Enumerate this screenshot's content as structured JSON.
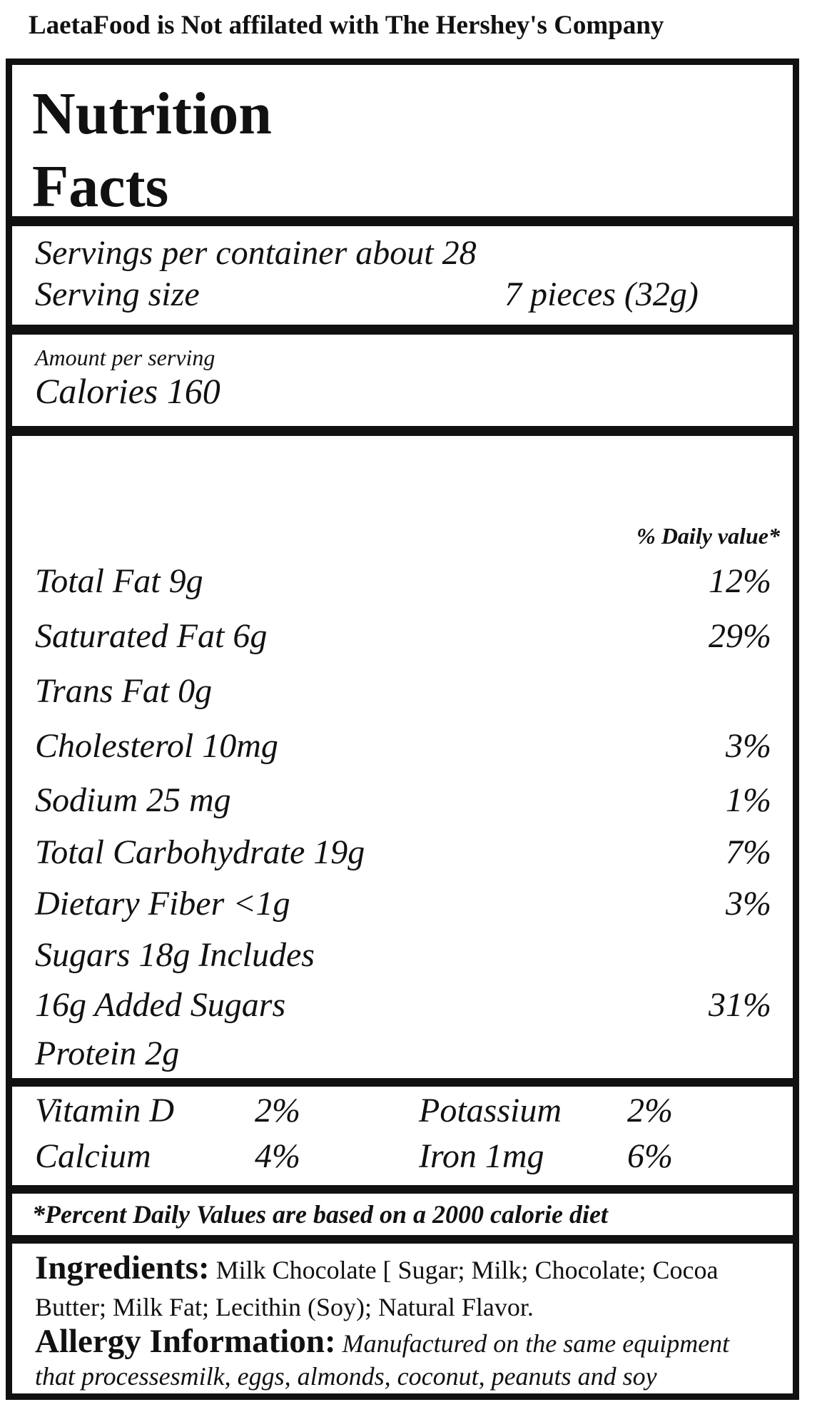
{
  "disclaimer": "LaetaFood is Not affilated with The Hershey's Company",
  "title_line1": "Nutrition",
  "title_line2": "Facts",
  "servings_per_container": "Servings per container about 28",
  "serving_size_label": "Serving size",
  "serving_size_value": "7 pieces (32g)",
  "amount_per_serving": "Amount per serving",
  "calories": "Calories 160",
  "daily_value_header": "% Daily value*",
  "nutrients": [
    {
      "label": "Total Fat  9g",
      "dv": "12%"
    },
    {
      "label": "Saturated Fat 6g",
      "dv": "29%"
    },
    {
      "label": "Trans Fat 0g",
      "dv": ""
    },
    {
      "label": "Cholesterol 10mg",
      "dv": "3%"
    },
    {
      "label": "Sodium 25 mg",
      "dv": "1%"
    },
    {
      "label": "Total Carbohydrate 19g",
      "dv": "7%"
    },
    {
      "label": "Dietary Fiber <1g",
      "dv": "3%"
    },
    {
      "label": "Sugars 18g Includes",
      "dv": ""
    },
    {
      "label": "16g Added Sugars",
      "dv": "31%"
    },
    {
      "label": "Protein 2g",
      "dv": ""
    }
  ],
  "vitamins": {
    "vitamin_d_label": "Vitamin D",
    "vitamin_d_value": "2%",
    "potassium_label": "Potassium",
    "potassium_value": "2%",
    "calcium_label": "Calcium",
    "calcium_value": "4%",
    "iron_label": "Iron 1mg",
    "iron_value": "6%"
  },
  "footnote": "*Percent Daily Values are based on a 2000 calorie diet",
  "ingredients_heading": "Ingredients:",
  "ingredients_text": "Milk Chocolate [ Sugar; Milk; Chocolate; Cocoa Butter; Milk Fat; Lecithin (Soy); Natural Flavor.",
  "allergy_heading": "Allergy Information:",
  "allergy_text": "Manufactured on the same equipment that processesmilk, eggs, almonds, coconut, peanuts and soy"
}
